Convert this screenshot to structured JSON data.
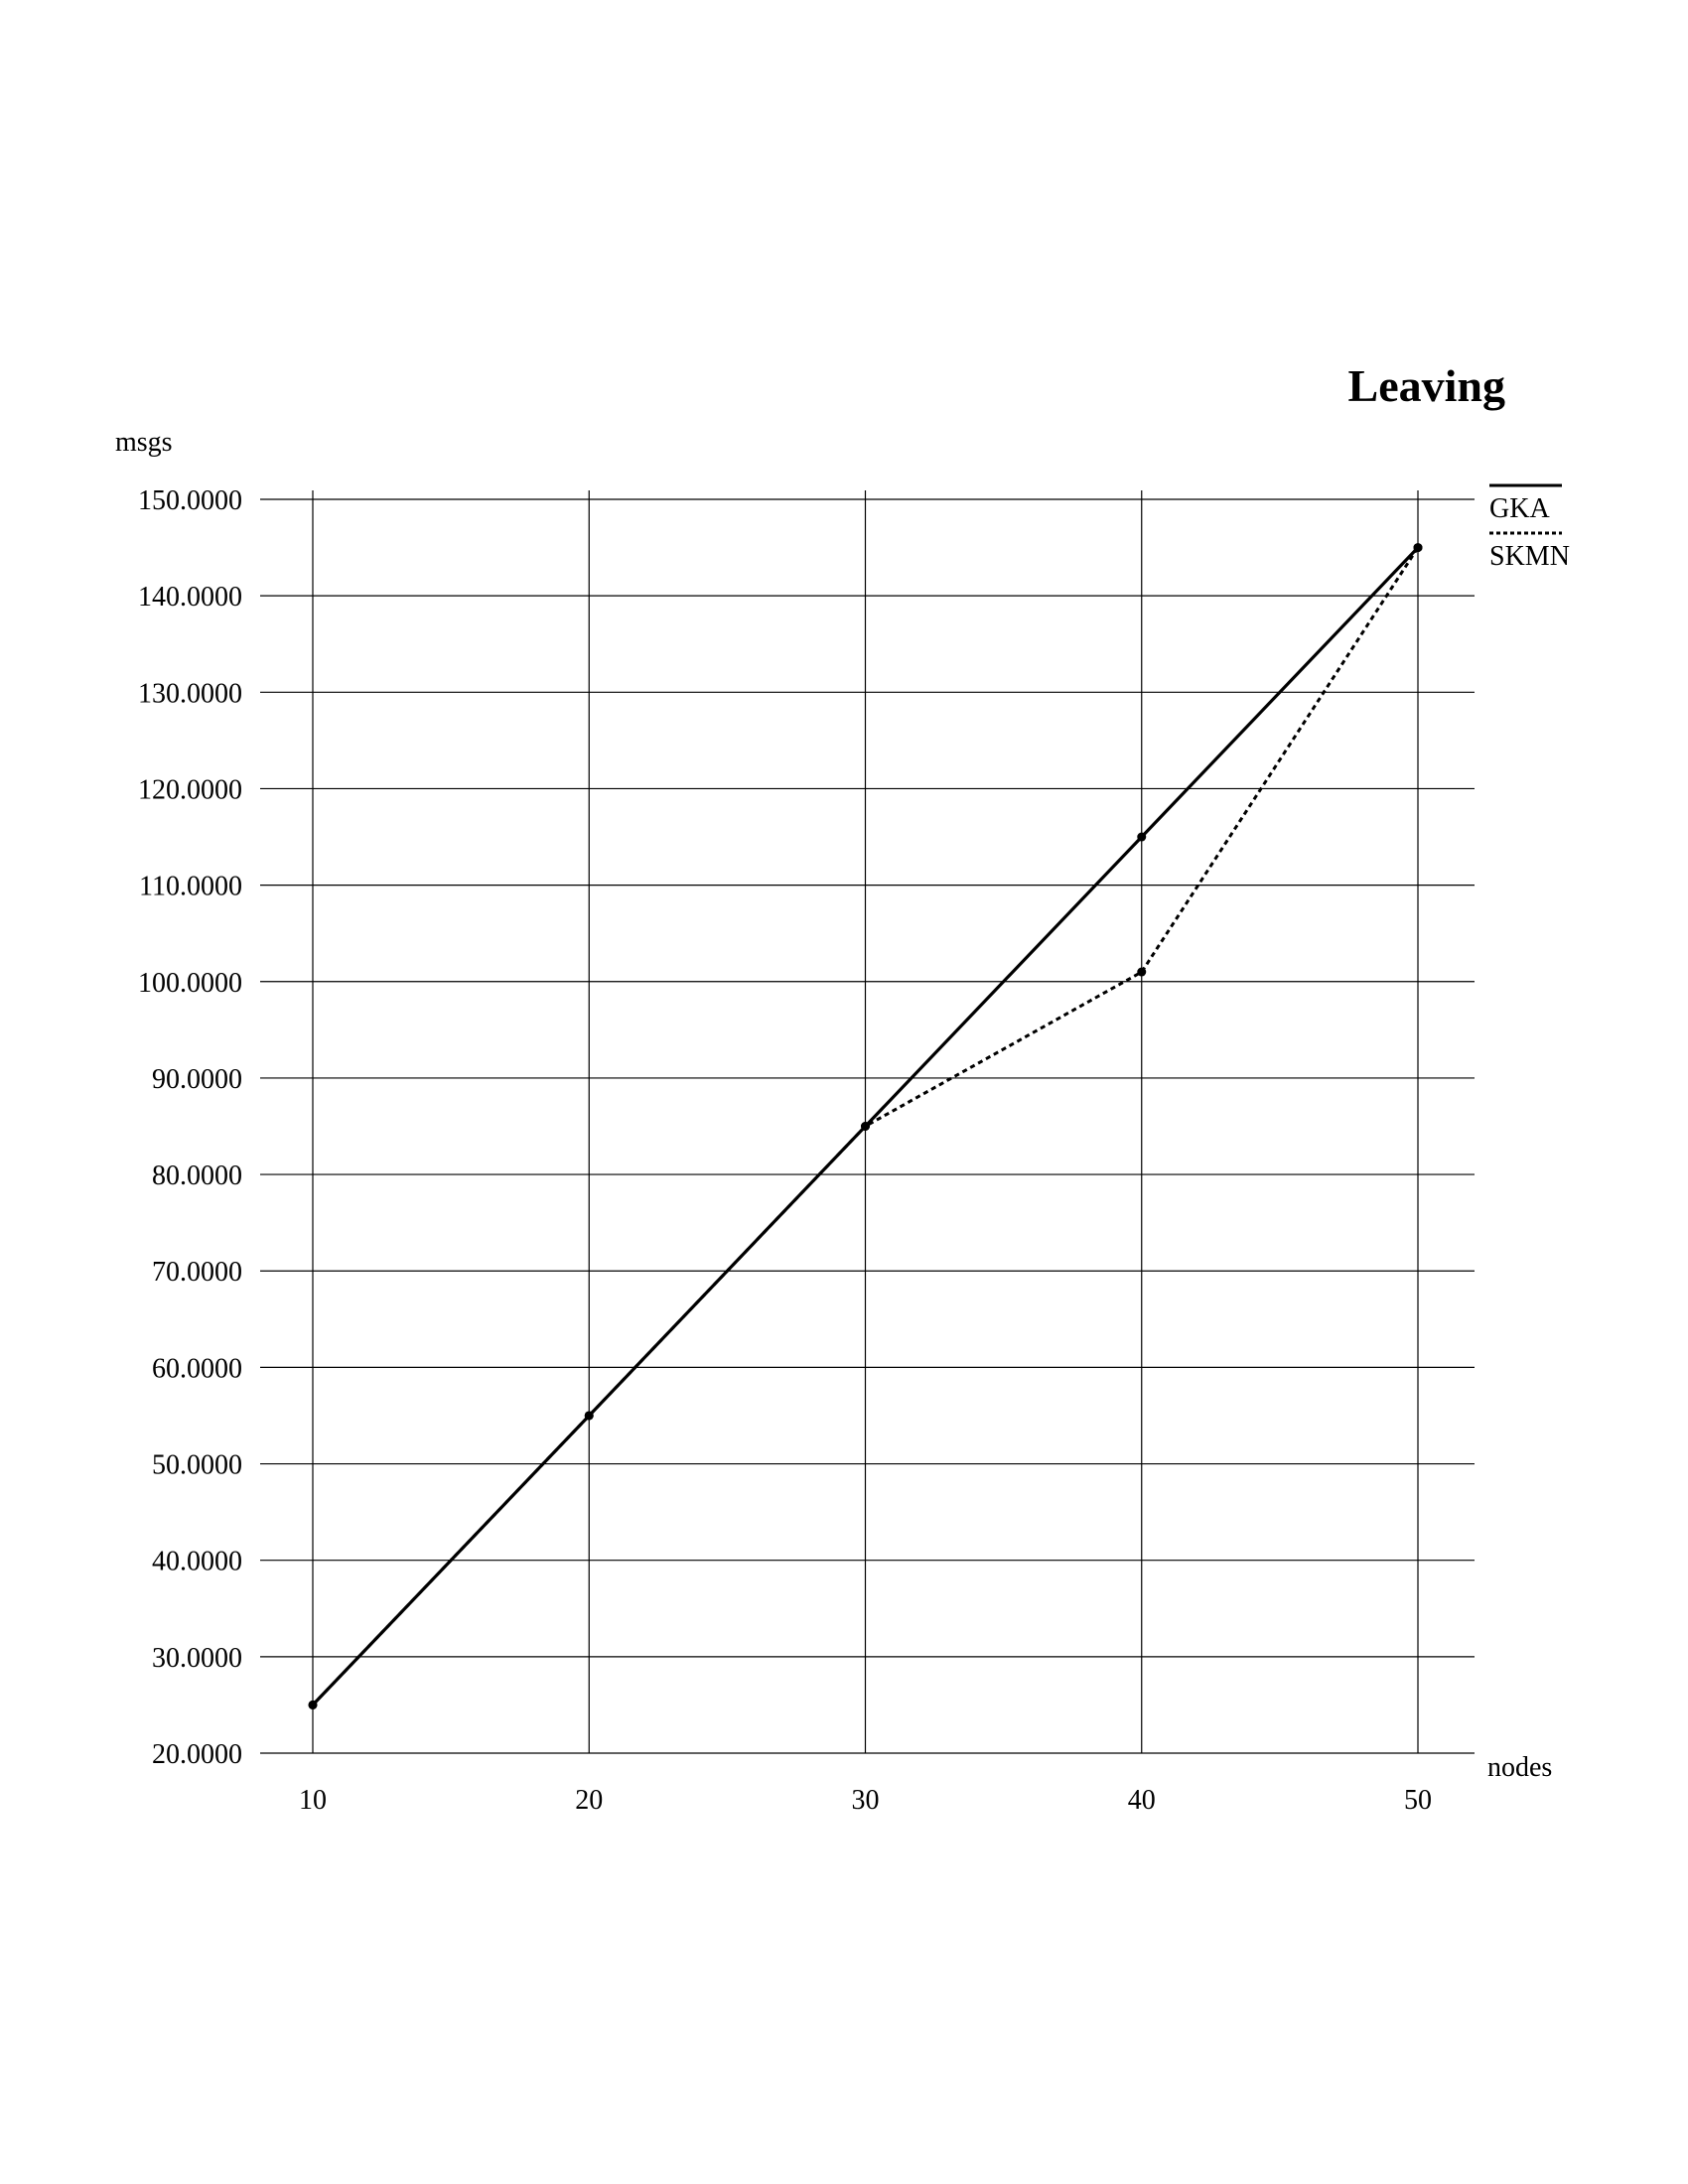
{
  "chart_data": {
    "type": "line",
    "title": "Leaving",
    "xlabel": "nodes",
    "ylabel": "msgs",
    "x": [
      10,
      20,
      30,
      40,
      50
    ],
    "x_tick_labels": [
      "10",
      "20",
      "30",
      "40",
      "50"
    ],
    "y_tick_labels": [
      "150.0000",
      "140.0000",
      "130.0000",
      "120.0000",
      "110.0000",
      "100.0000",
      "90.0000",
      "80.0000",
      "70.0000",
      "60.0000",
      "50.0000",
      "40.0000",
      "30.0000",
      "20.0000"
    ],
    "ylim": [
      20,
      150
    ],
    "xlim": [
      10,
      50
    ],
    "grid": true,
    "legend_position": "top-right",
    "series": [
      {
        "name": "GKA",
        "style": "solid",
        "values": [
          25,
          55,
          85,
          115,
          145
        ]
      },
      {
        "name": "SKMN",
        "style": "dotted",
        "values": [
          25,
          55,
          85,
          101,
          145
        ]
      }
    ]
  },
  "colors": {
    "line": "#000000",
    "grid": "#000000",
    "background": "#ffffff"
  }
}
